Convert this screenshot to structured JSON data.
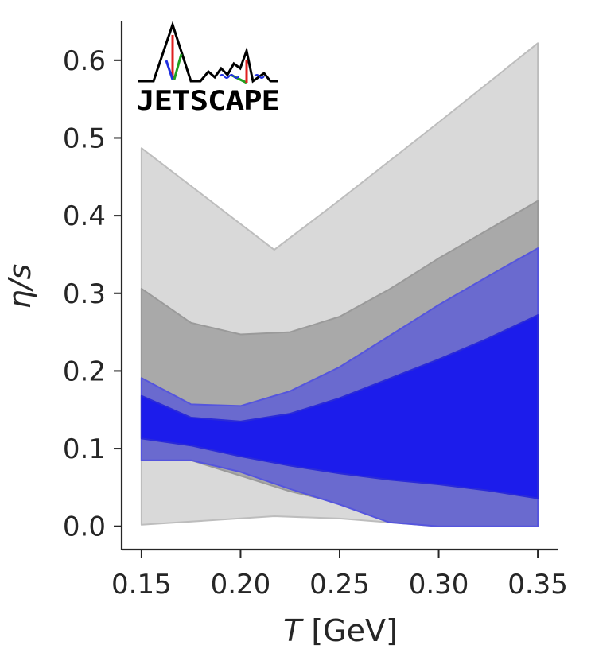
{
  "chart_data": {
    "type": "area",
    "xlabel_var": "T",
    "xlabel_unit": "[GeV]",
    "ylabel": "η/s",
    "xlim": [
      0.14,
      0.36
    ],
    "ylim": [
      -0.03,
      0.65
    ],
    "x_ticks": [
      "0.15",
      "0.20",
      "0.25",
      "0.30",
      "0.35"
    ],
    "x_tick_values": [
      0.15,
      0.2,
      0.25,
      0.3,
      0.35
    ],
    "y_ticks": [
      "0.0",
      "0.1",
      "0.2",
      "0.3",
      "0.4",
      "0.5",
      "0.6"
    ],
    "y_tick_values": [
      0.0,
      0.1,
      0.2,
      0.3,
      0.4,
      0.5,
      0.6
    ],
    "grid": false,
    "logo_text": "JETSCAPE",
    "series": [
      {
        "fill": "#d9d9d9",
        "stroke": "#bdbdbd",
        "x": [
          0.15,
          0.217,
          0.25,
          0.3,
          0.35
        ],
        "upper": [
          0.487,
          0.356,
          0.42,
          0.52,
          0.622
        ],
        "lower": [
          0.002,
          0.013,
          0.01,
          0.0,
          0.0
        ]
      },
      {
        "fill": "#a9a9a9",
        "stroke": "#9a9a9a",
        "x": [
          0.15,
          0.175,
          0.2,
          0.225,
          0.25,
          0.275,
          0.3,
          0.325,
          0.35
        ],
        "upper": [
          0.306,
          0.262,
          0.247,
          0.25,
          0.27,
          0.305,
          0.345,
          0.382,
          0.419
        ],
        "lower": [
          0.085,
          0.085,
          0.065,
          0.045,
          0.03,
          0.012,
          0.0,
          0.0,
          0.0
        ]
      },
      {
        "fill": "#6a6acf",
        "stroke": "#5555dd",
        "x": [
          0.15,
          0.175,
          0.2,
          0.225,
          0.25,
          0.275,
          0.3,
          0.325,
          0.35
        ],
        "upper": [
          0.191,
          0.157,
          0.155,
          0.174,
          0.205,
          0.245,
          0.285,
          0.322,
          0.358
        ],
        "lower": [
          0.085,
          0.085,
          0.07,
          0.048,
          0.028,
          0.005,
          0.0,
          0.0,
          0.0
        ]
      },
      {
        "fill": "#1c1ceb",
        "stroke": "#2a2ad8",
        "x": [
          0.15,
          0.175,
          0.2,
          0.225,
          0.25,
          0.275,
          0.3,
          0.325,
          0.35
        ],
        "upper": [
          0.168,
          0.14,
          0.135,
          0.145,
          0.165,
          0.19,
          0.215,
          0.242,
          0.272
        ],
        "lower": [
          0.113,
          0.104,
          0.09,
          0.078,
          0.068,
          0.06,
          0.054,
          0.046,
          0.036
        ]
      }
    ]
  }
}
